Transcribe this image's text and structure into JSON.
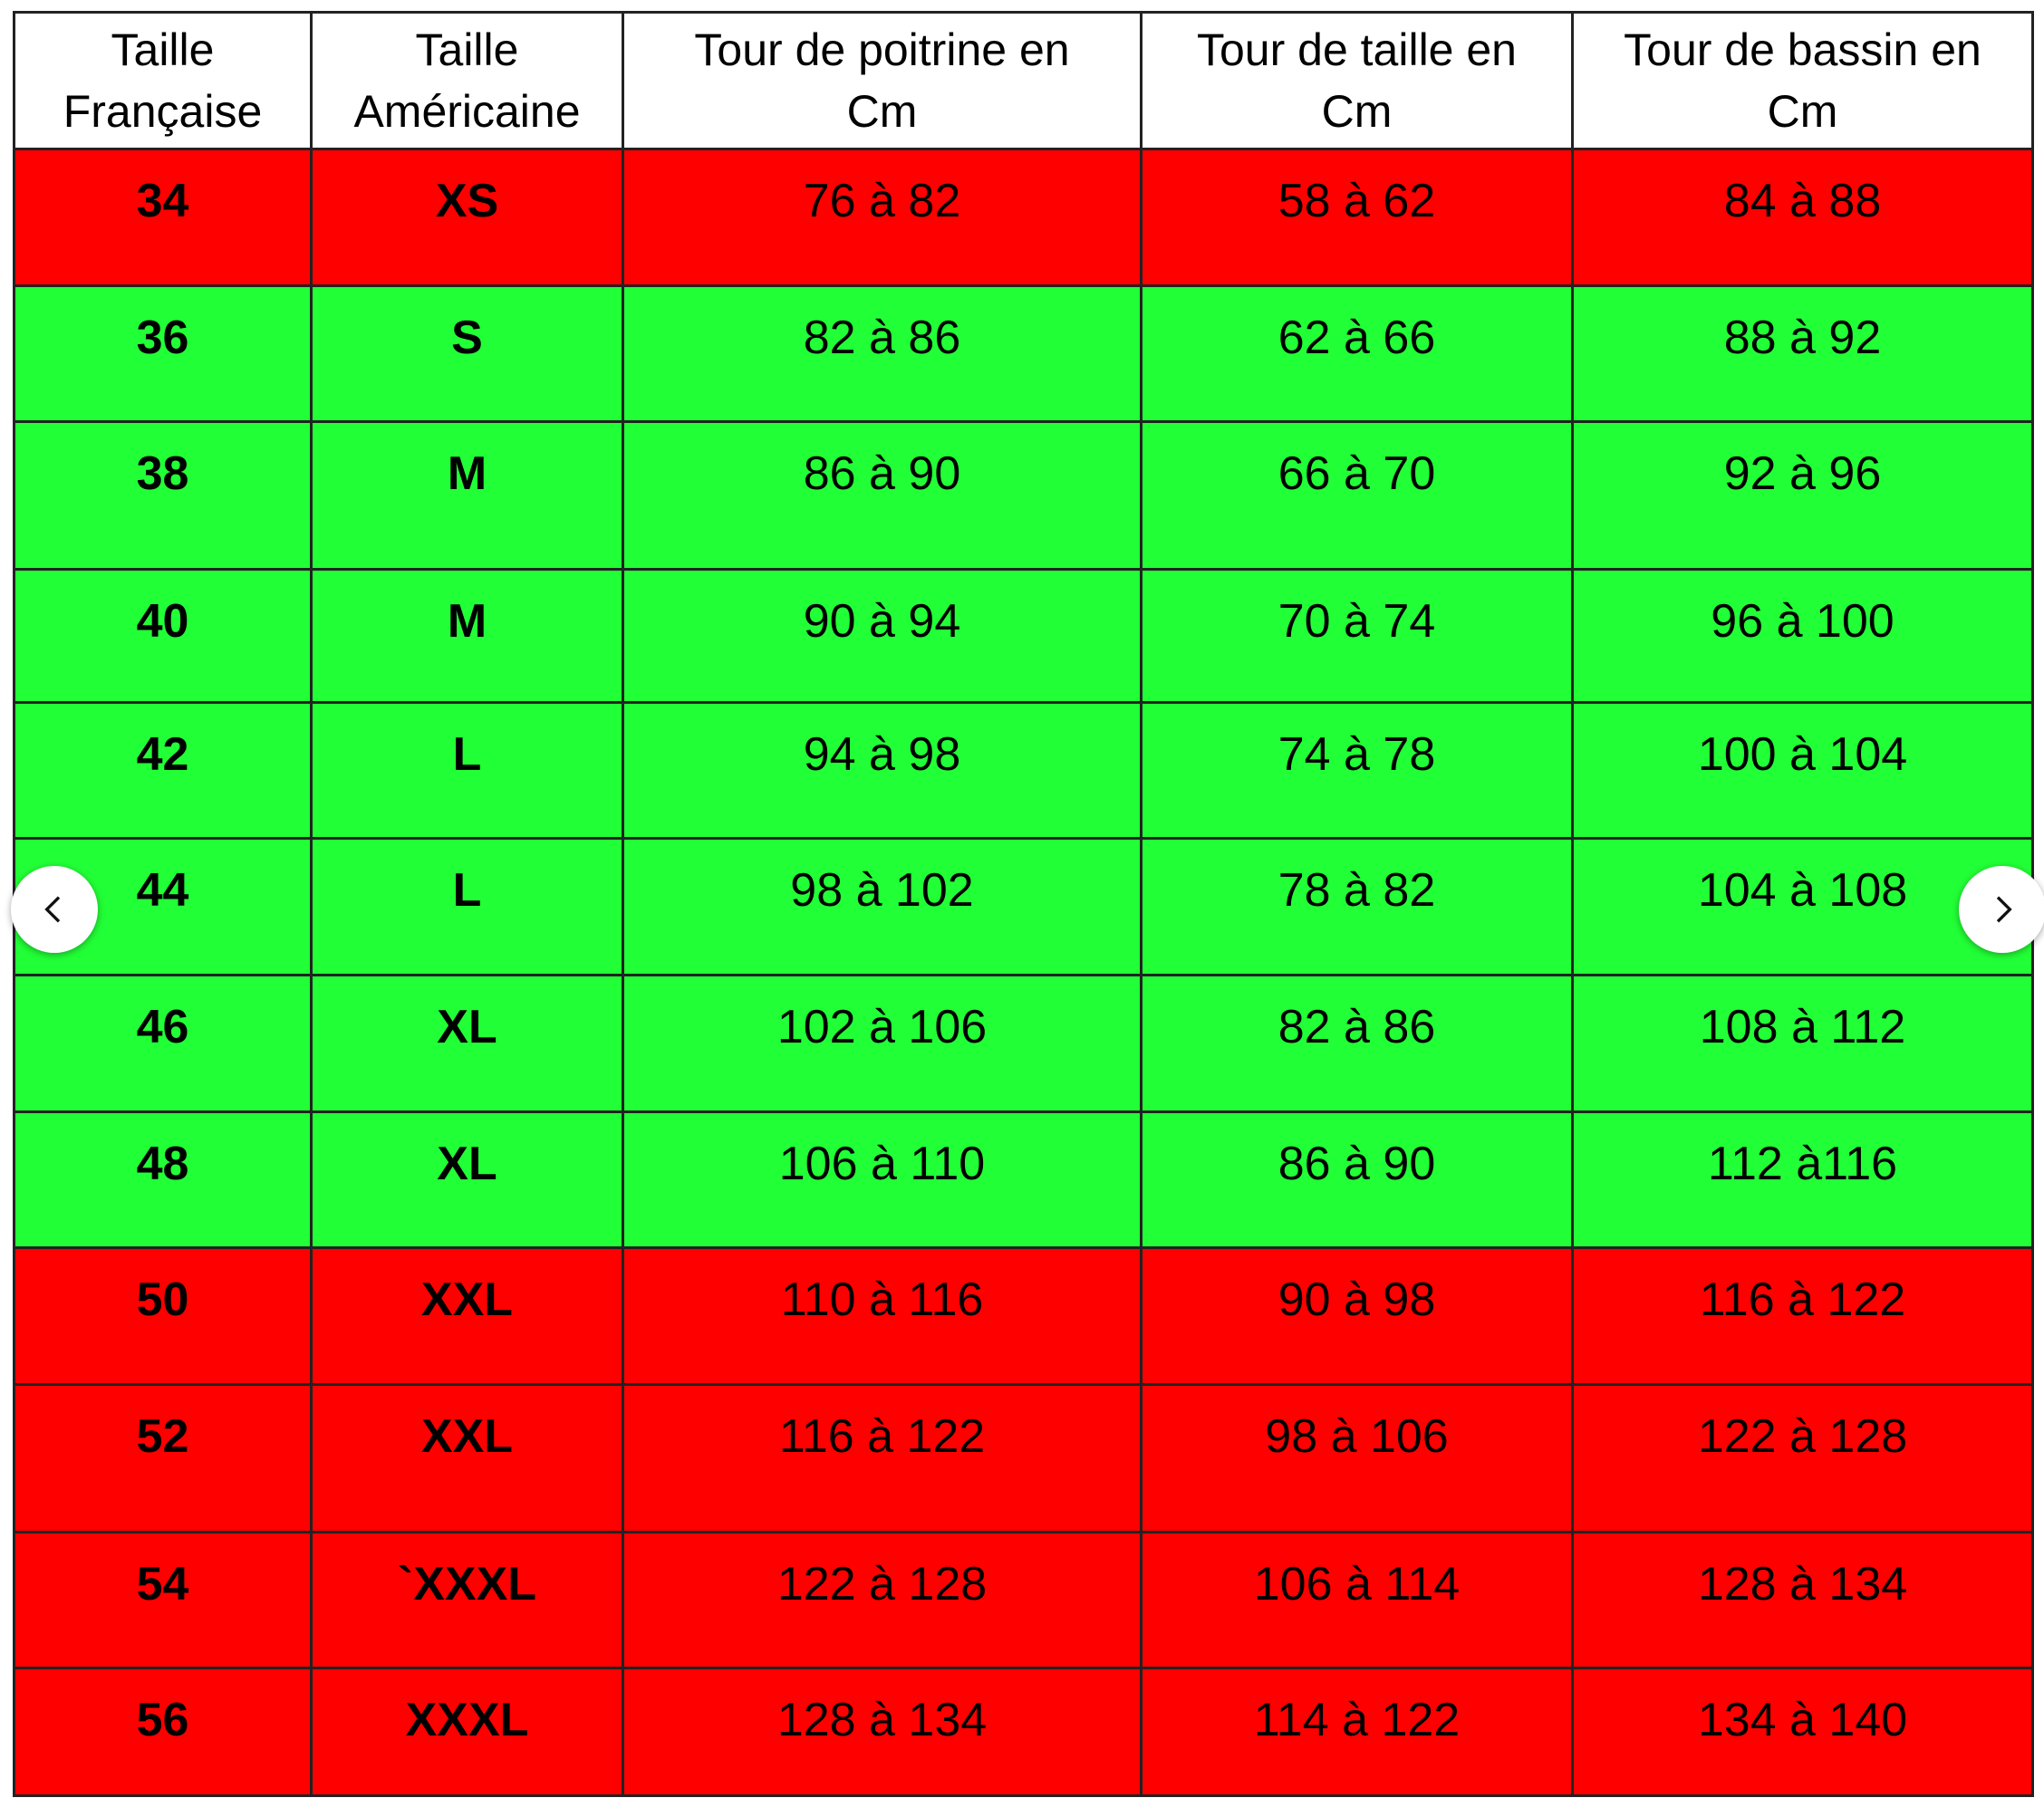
{
  "table": {
    "headers": [
      {
        "line1": "Taille",
        "line2": "Française"
      },
      {
        "line1": "Taille",
        "line2": "Américaine"
      },
      {
        "line1": "Tour de poitrine en",
        "line2": "Cm"
      },
      {
        "line1": "Tour de taille en",
        "line2": "Cm"
      },
      {
        "line1": "Tour de bassin en",
        "line2": "Cm"
      }
    ],
    "rows": [
      {
        "fr": "34",
        "us": "XS",
        "poitrine": "76 à 82",
        "taille": "58 à 62",
        "bassin": "84 à 88",
        "color": "red"
      },
      {
        "fr": "36",
        "us": "S",
        "poitrine": "82 à 86",
        "taille": "62 à 66",
        "bassin": "88 à 92",
        "color": "green"
      },
      {
        "fr": "38",
        "us": "M",
        "poitrine": "86 à 90",
        "taille": "66 à 70",
        "bassin": "92 à 96",
        "color": "green"
      },
      {
        "fr": "40",
        "us": "M",
        "poitrine": "90 à 94",
        "taille": "70 à 74",
        "bassin": "96 à 100",
        "color": "green"
      },
      {
        "fr": "42",
        "us": "L",
        "poitrine": "94 à 98",
        "taille": "74 à 78",
        "bassin": "100 à 104",
        "color": "green"
      },
      {
        "fr": "44",
        "us": "L",
        "poitrine": "98 à 102",
        "taille": "78 à 82",
        "bassin": "104 à 108",
        "color": "green"
      },
      {
        "fr": "46",
        "us": "XL",
        "poitrine": "102 à 106",
        "taille": "82 à 86",
        "bassin": "108 à 112",
        "color": "green"
      },
      {
        "fr": "48",
        "us": "XL",
        "poitrine": "106 à 110",
        "taille": "86 à 90",
        "bassin": "112 à116",
        "color": "green"
      },
      {
        "fr": "50",
        "us": "XXL",
        "poitrine": "110 à 116",
        "taille": "90 à 98",
        "bassin": "116 à 122",
        "color": "red"
      },
      {
        "fr": "52",
        "us": "XXL",
        "poitrine": "116 à 122",
        "taille": "98 à 106",
        "bassin": "122 à 128",
        "color": "red"
      },
      {
        "fr": "54",
        "us": "`XXXL",
        "poitrine": "122 à 128",
        "taille": "106 à 114",
        "bassin": "128 à 134",
        "color": "red"
      },
      {
        "fr": "56",
        "us": "XXXL",
        "poitrine": "128 à 134",
        "taille": "114 à 122",
        "bassin": "134 à 140",
        "color": "red"
      }
    ]
  },
  "colors": {
    "red": "#ff0000",
    "green": "#21ff36",
    "border": "#222222"
  },
  "nav": {
    "prev_icon": "chevron-left-icon",
    "next_icon": "chevron-right-icon"
  }
}
